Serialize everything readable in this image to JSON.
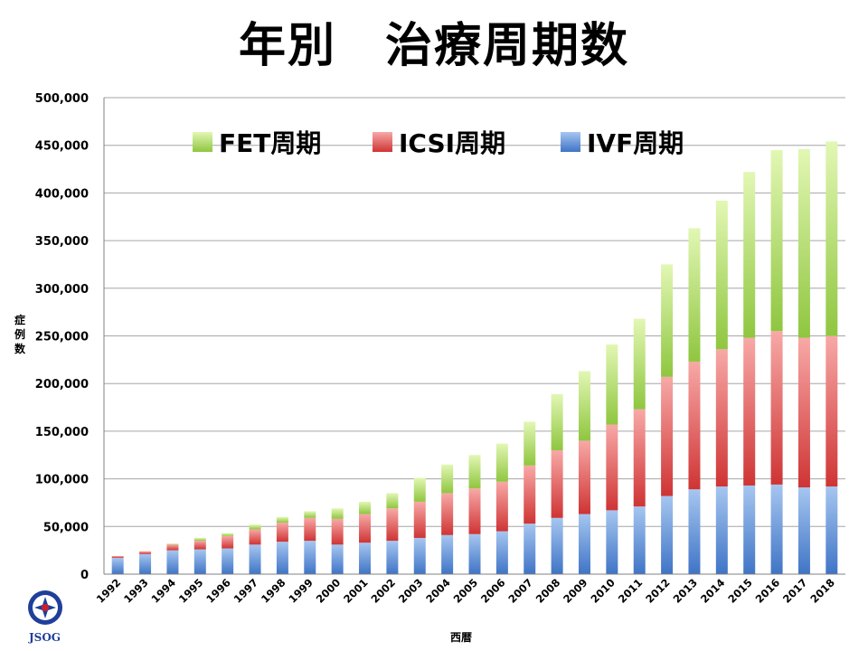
{
  "title": "年別　治療周期数",
  "logo_text": "JSOG",
  "colors": {
    "fet_top": "#e2f7b4",
    "fet_bottom": "#8fc63f",
    "icsi_top": "#f7a9a7",
    "icsi_bottom": "#cf3434",
    "ivf_top": "#a6c6f0",
    "ivf_bottom": "#3f74c6",
    "grid": "#a6a6a6"
  },
  "chart_data": {
    "type": "bar",
    "stacked": true,
    "title": "年別　治療周期数",
    "xlabel": "西暦",
    "ylabel": "症例数",
    "ylim": [
      0,
      500000
    ],
    "yticks": [
      0,
      50000,
      100000,
      150000,
      200000,
      250000,
      300000,
      350000,
      400000,
      450000,
      500000
    ],
    "ytick_labels": [
      "0",
      "50,000",
      "100,000",
      "150,000",
      "200,000",
      "250,000",
      "300,000",
      "350,000",
      "400,000",
      "450,000",
      "500,000"
    ],
    "grid": true,
    "legend_position": "top",
    "categories": [
      "1992",
      "1993",
      "1994",
      "1995",
      "1996",
      "1997",
      "1998",
      "1999",
      "2000",
      "2001",
      "2002",
      "2003",
      "2004",
      "2005",
      "2006",
      "2007",
      "2008",
      "2009",
      "2010",
      "2011",
      "2012",
      "2013",
      "2014",
      "2015",
      "2016",
      "2017",
      "2018"
    ],
    "series": [
      {
        "name": "IVF周期",
        "color_key": "ivf",
        "values": [
          17000,
          21000,
          25000,
          26000,
          27000,
          31000,
          34000,
          35000,
          31000,
          33000,
          35000,
          38000,
          41000,
          42000,
          45000,
          53000,
          59000,
          63000,
          67000,
          71000,
          82000,
          89000,
          92000,
          93000,
          94000,
          91000,
          92000
        ]
      },
      {
        "name": "ICSI周期",
        "color_key": "icsi",
        "values": [
          2000,
          3000,
          6000,
          9000,
          13000,
          16000,
          20000,
          24000,
          27000,
          30000,
          34000,
          38000,
          44000,
          48000,
          52000,
          61000,
          71000,
          77000,
          90000,
          102000,
          125000,
          134000,
          144000,
          155000,
          161000,
          157000,
          158000
        ]
      },
      {
        "name": "FET周期",
        "color_key": "fet",
        "values": [
          0,
          0,
          1000,
          3000,
          3000,
          5000,
          6000,
          7000,
          11000,
          13000,
          16000,
          25000,
          30000,
          35000,
          40000,
          46000,
          59000,
          73000,
          84000,
          95000,
          118000,
          140000,
          156000,
          174000,
          190000,
          198000,
          204000
        ]
      }
    ]
  }
}
